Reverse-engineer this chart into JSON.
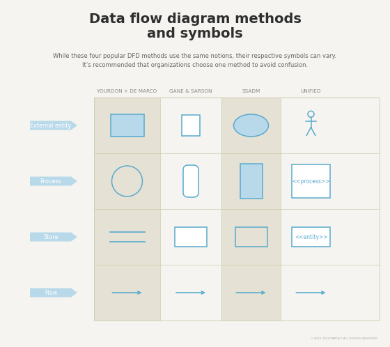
{
  "title": "Data flow diagram methods\nand symbols",
  "subtitle": "While these four popular DFD methods use the same notions, their respective symbols can vary.\nIt’s recommended that organizations choose one method to avoid confusion.",
  "bg_color": "#f0ede5",
  "white_bg": "#f5f4f0",
  "col_headers": [
    "YOURDON + DE MARCO",
    "GANE & SARSON",
    "SSADM",
    "UNIFIED"
  ],
  "row_labels": [
    "External entity",
    "Process",
    "Store",
    "Flow"
  ],
  "shape_color_fill": "#b8d9ea",
  "shape_color_stroke": "#5aabcc",
  "header_text": "#888888",
  "title_color": "#2e2e2e",
  "subtitle_color": "#666666",
  "highlight_cols": [
    0,
    2
  ],
  "col_highlight_color": "#e5e1d5",
  "table_border": "#ccccaa",
  "copyright": "©2022 TECHTARGET ALL RIGHTS RESERVED"
}
